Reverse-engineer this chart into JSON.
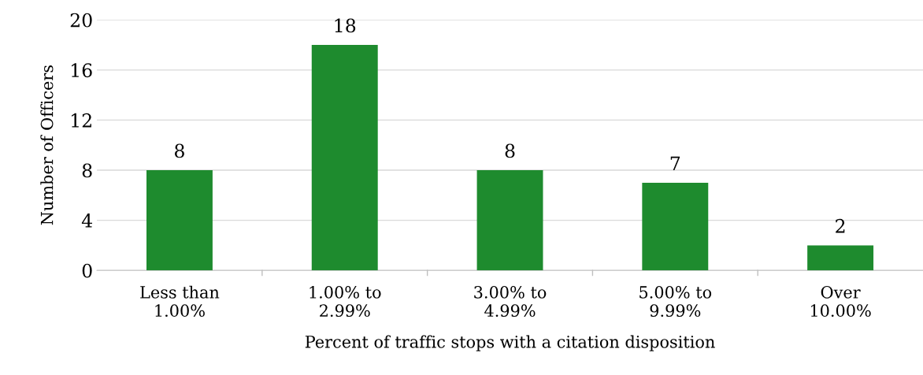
{
  "chart_data": {
    "type": "bar",
    "xlabel": "Percent of traffic stops with a citation disposition",
    "ylabel": "Number of Officers",
    "categories": [
      "Less than\n1.00%",
      "1.00% to\n2.99%",
      "3.00% to\n4.99%",
      "5.00% to\n9.99%",
      "Over\n10.00%"
    ],
    "values": [
      8,
      18,
      8,
      7,
      2
    ],
    "color": "#1e8b2e",
    "ylim": [
      0,
      20
    ],
    "yticks": [
      0,
      4,
      8,
      12,
      16,
      20
    ],
    "grid": "y",
    "data_labels": true
  }
}
